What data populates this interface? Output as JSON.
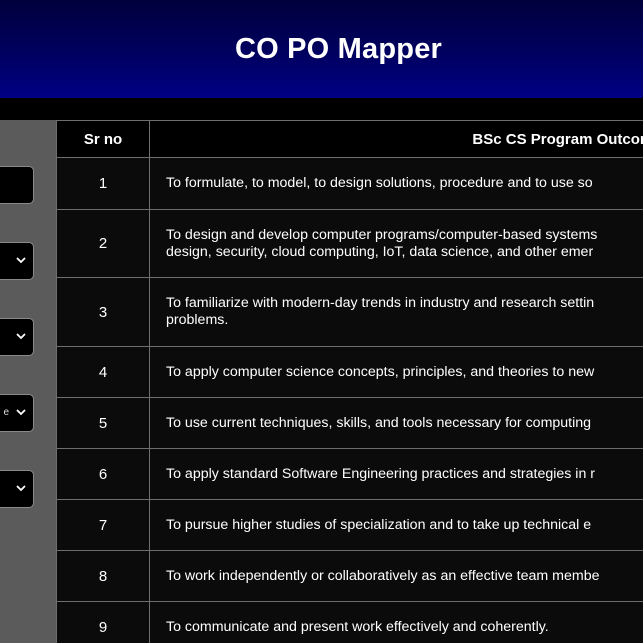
{
  "app": {
    "title": "CO PO Mapper"
  },
  "sidebar": {
    "controls": [
      {
        "type": "input",
        "value": ""
      },
      {
        "type": "select",
        "value": ""
      },
      {
        "type": "select",
        "value": ""
      },
      {
        "type": "select",
        "value": "e"
      },
      {
        "type": "select",
        "value": ""
      }
    ]
  },
  "table": {
    "headers": {
      "sr_no": "Sr no",
      "outcome": "BSc CS Program Outcome"
    },
    "rows": [
      {
        "sr": "1",
        "lines": [
          "To formulate, to model, to design solutions, procedure and to use so"
        ]
      },
      {
        "sr": "2",
        "lines": [
          "To design and develop computer programs/computer-based systems",
          "design, security, cloud computing, IoT, data science, and other emer"
        ]
      },
      {
        "sr": "3",
        "lines": [
          "To familiarize with modern-day trends in industry and research settin",
          "problems."
        ]
      },
      {
        "sr": "4",
        "lines": [
          "To apply computer science concepts, principles, and theories to new"
        ]
      },
      {
        "sr": "5",
        "lines": [
          "To use current techniques, skills, and tools necessary for computing"
        ]
      },
      {
        "sr": "6",
        "lines": [
          "To apply standard Software Engineering practices and strategies in r"
        ]
      },
      {
        "sr": "7",
        "lines": [
          "To pursue higher studies of specialization and to take up technical e"
        ]
      },
      {
        "sr": "8",
        "lines": [
          "To work independently or collaboratively as an effective team membe"
        ]
      },
      {
        "sr": "9",
        "lines": [
          "To communicate and present work effectively and coherently."
        ]
      }
    ]
  },
  "colors": {
    "header_top": "#00003c",
    "header_bottom": "#000085",
    "sidebar_bg": "#5b5b5b",
    "cell_bg": "#0b0b0b",
    "border": "#6e6e6e"
  }
}
